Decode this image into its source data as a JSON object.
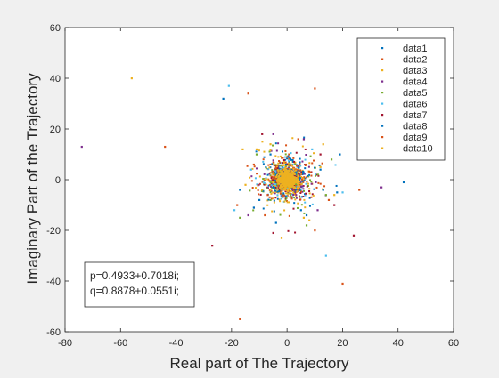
{
  "chart_data": {
    "type": "scatter",
    "title": "",
    "xlabel": "Real part of The Trajectory",
    "ylabel": "Imaginary Part of the Trajectory",
    "xlim": [
      -80,
      60
    ],
    "ylim": [
      -60,
      60
    ],
    "xticks": [
      -80,
      -60,
      -40,
      -20,
      0,
      20,
      40,
      60
    ],
    "yticks": [
      -60,
      -40,
      -20,
      0,
      20,
      40,
      60
    ],
    "grid": false,
    "legend_position": "top-right",
    "annotation": [
      "p=0.4933+0.7018i;",
      "q=0.8878+0.0551i;"
    ],
    "series": [
      {
        "name": "data1",
        "color": "#0072BD",
        "points": [
          [
            -23,
            32
          ],
          [
            42,
            -1
          ],
          [
            18,
            -5
          ],
          [
            -10,
            -8
          ],
          [
            12,
            4
          ],
          [
            -6,
            10
          ],
          [
            5,
            -12
          ]
        ]
      },
      {
        "name": "data2",
        "color": "#D95319",
        "points": [
          [
            -44,
            13
          ],
          [
            -17,
            -55
          ],
          [
            20,
            -41
          ],
          [
            10,
            36
          ],
          [
            -12,
            6
          ],
          [
            15,
            -8
          ],
          [
            -8,
            -14
          ]
        ]
      },
      {
        "name": "data3",
        "color": "#EDB120",
        "points": [
          [
            -56,
            40
          ],
          [
            -2,
            -23
          ],
          [
            -16,
            12
          ],
          [
            13,
            14
          ],
          [
            -9,
            -4
          ],
          [
            8,
            -16
          ]
        ]
      },
      {
        "name": "data4",
        "color": "#7E2F8E",
        "points": [
          [
            -74,
            13
          ],
          [
            34,
            -3
          ],
          [
            -14,
            -14
          ],
          [
            6,
            16
          ],
          [
            11,
            -12
          ],
          [
            -5,
            18
          ]
        ]
      },
      {
        "name": "data5",
        "color": "#77AC30",
        "points": [
          [
            -17,
            -15
          ],
          [
            14,
            -6
          ],
          [
            -11,
            10
          ],
          [
            7,
            -18
          ],
          [
            -6,
            -8
          ],
          [
            16,
            8
          ]
        ]
      },
      {
        "name": "data6",
        "color": "#4DBEEE",
        "points": [
          [
            -21,
            37
          ],
          [
            20,
            -5
          ],
          [
            -19,
            -12
          ],
          [
            14,
            -30
          ],
          [
            -13,
            4
          ],
          [
            9,
            12
          ]
        ]
      },
      {
        "name": "data7",
        "color": "#A2142F",
        "points": [
          [
            -27,
            -26
          ],
          [
            24,
            -22
          ],
          [
            -5,
            -21
          ],
          [
            -9,
            18
          ],
          [
            17,
            -10
          ],
          [
            12,
            10
          ]
        ]
      },
      {
        "name": "data8",
        "color": "#0072BD",
        "points": [
          [
            -17,
            -4
          ],
          [
            -12,
            -11
          ],
          [
            19,
            10
          ],
          [
            7,
            -14
          ],
          [
            -4,
            -17
          ],
          [
            13,
            -4
          ]
        ]
      },
      {
        "name": "data9",
        "color": "#D95319",
        "points": [
          [
            -14,
            34
          ],
          [
            26,
            -4
          ],
          [
            -7,
            -6
          ],
          [
            10,
            -20
          ],
          [
            -18,
            -10
          ],
          [
            4,
            16
          ]
        ]
      },
      {
        "name": "data10",
        "color": "#EDB120",
        "points": [
          [
            -15,
            -2
          ],
          [
            -11,
            12
          ],
          [
            12,
            5
          ],
          [
            6,
            -15
          ],
          [
            -6,
            14
          ],
          [
            17,
            -6
          ]
        ]
      }
    ]
  }
}
